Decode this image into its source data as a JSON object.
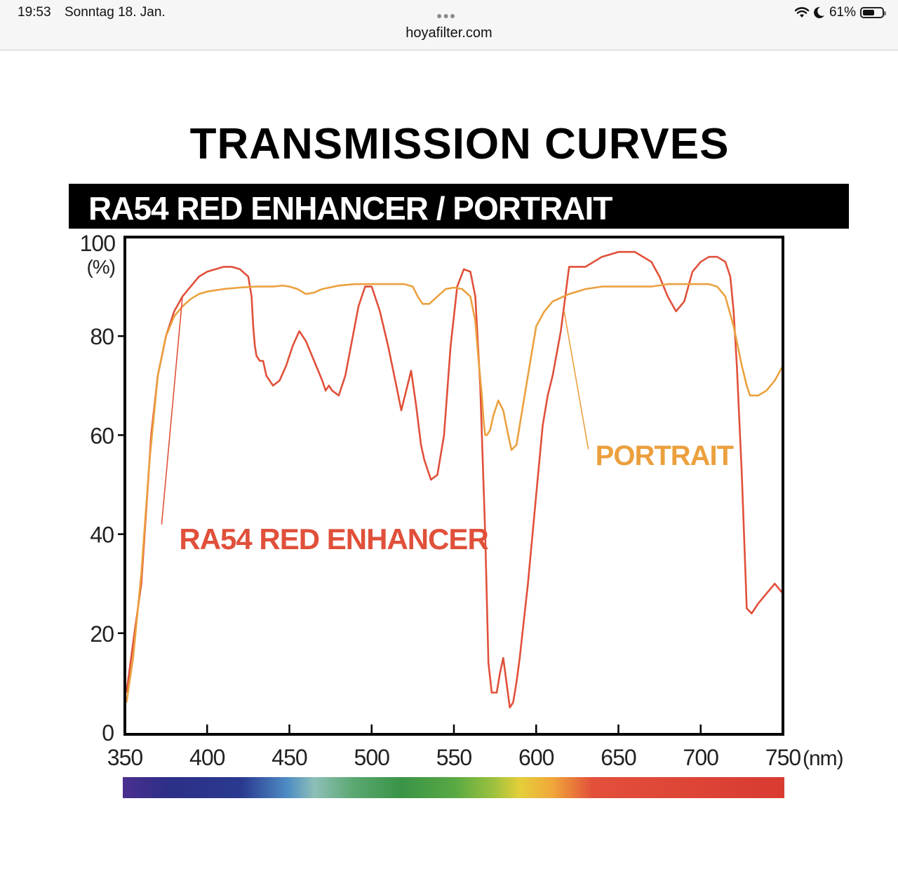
{
  "status_bar": {
    "time": "19:53",
    "date": "Sonntag 18. Jan.",
    "url": "hoyafilter.com",
    "battery_percent": "61%",
    "battery_level": 0.61,
    "icons": [
      "wifi-icon",
      "moon-icon",
      "battery-icon"
    ]
  },
  "page": {
    "title": "TRANSMISSION CURVES"
  },
  "chart_data": {
    "type": "line",
    "title": "RA54 RED ENHANCER / PORTRAIT",
    "ylabel": "100\n(%)",
    "ylabel_top": "100",
    "ylabel_unit": "(%)",
    "xlabel_unit": "(nm)",
    "xlim": [
      350,
      750
    ],
    "ylim": [
      0,
      100
    ],
    "x_ticks": [
      350,
      400,
      450,
      500,
      550,
      600,
      650,
      700,
      750
    ],
    "x_tick_labels": [
      "350",
      "400",
      "450",
      "500",
      "550",
      "600",
      "650",
      "700",
      "750"
    ],
    "y_ticks": [
      0,
      20,
      40,
      60,
      80
    ],
    "y_tick_labels": [
      "0",
      "20",
      "40",
      "60",
      "80"
    ],
    "grid": false,
    "legend": "inline labels",
    "spectrum_bar": true,
    "series": [
      {
        "name": "RA54 RED ENHANCER",
        "color": "#e0503a",
        "label_at": [
          383,
          37
        ],
        "leader_from": [
          385,
          88
        ],
        "x": [
          351,
          355,
          360,
          363,
          366,
          370,
          375,
          380,
          385,
          390,
          395,
          400,
          405,
          410,
          415,
          420,
          425,
          427,
          428,
          429,
          430,
          432,
          434,
          436,
          440,
          444,
          448,
          452,
          456,
          460,
          465,
          470,
          472,
          474,
          476,
          480,
          484,
          488,
          492,
          496,
          500,
          505,
          510,
          515,
          518,
          521,
          524,
          527,
          530,
          532,
          536,
          540,
          544,
          548,
          552,
          556,
          560,
          563,
          566,
          569,
          571,
          573,
          576,
          578,
          580,
          582,
          584,
          586,
          588,
          590,
          595,
          600,
          604,
          607,
          610,
          615,
          620,
          625,
          630,
          640,
          650,
          660,
          665,
          670,
          675,
          680,
          685,
          690,
          695,
          700,
          705,
          710,
          715,
          718,
          720,
          722,
          725,
          728,
          731,
          735,
          740,
          745,
          750
        ],
        "y": [
          8,
          18,
          30,
          45,
          60,
          72,
          80,
          85,
          88,
          90,
          92,
          93,
          93.5,
          94,
          94,
          93.5,
          92,
          88,
          82,
          78,
          76,
          75,
          75,
          72,
          70,
          71,
          74,
          78,
          81,
          79,
          75,
          71,
          69,
          70,
          69,
          68,
          72,
          79,
          86,
          90,
          90,
          85,
          78,
          70,
          65,
          69,
          73,
          66,
          58,
          55,
          51,
          52,
          60,
          78,
          90,
          93.5,
          93,
          88,
          70,
          40,
          14,
          8,
          8,
          12,
          15,
          10,
          5,
          6,
          10,
          15,
          30,
          48,
          62,
          68,
          72,
          81,
          94,
          94,
          94,
          96,
          97,
          97,
          96,
          95,
          92,
          88,
          85,
          87,
          93,
          95,
          96,
          96,
          95,
          92,
          85,
          74,
          52,
          25,
          24,
          26,
          28,
          30,
          28
        ]
      },
      {
        "name": "PORTRAIT",
        "color": "#eba03e",
        "label_at": [
          636,
          54
        ],
        "leader_from": [
          617,
          85
        ],
        "x": [
          351,
          355,
          360,
          365,
          370,
          375,
          380,
          385,
          390,
          395,
          400,
          410,
          420,
          430,
          440,
          446,
          450,
          455,
          460,
          465,
          470,
          480,
          490,
          500,
          510,
          520,
          525,
          528,
          531,
          535,
          540,
          545,
          550,
          555,
          560,
          563,
          565,
          567,
          568,
          569,
          570,
          572,
          574,
          577,
          580,
          583,
          585,
          588,
          590,
          595,
          600,
          605,
          610,
          620,
          630,
          640,
          650,
          660,
          670,
          680,
          690,
          700,
          705,
          710,
          715,
          720,
          725,
          728,
          730,
          735,
          740,
          745,
          750
        ],
        "y": [
          6,
          15,
          32,
          55,
          72,
          80,
          84,
          86,
          87.5,
          88.5,
          89,
          89.5,
          89.8,
          90,
          90,
          90.2,
          90,
          89.5,
          88.5,
          88.8,
          89.5,
          90.2,
          90.5,
          90.5,
          90.5,
          90.5,
          90,
          88,
          86.5,
          86.5,
          88,
          89.5,
          89.8,
          89.5,
          88,
          83,
          75,
          68,
          63,
          60,
          60,
          61,
          64,
          67,
          65,
          60,
          57,
          58,
          62,
          72,
          82,
          85,
          87,
          88.5,
          89.5,
          90,
          90,
          90,
          90,
          90.5,
          90.5,
          90.5,
          90.5,
          90,
          88,
          82,
          74,
          70,
          68,
          68,
          69,
          71,
          74
        ]
      }
    ]
  }
}
